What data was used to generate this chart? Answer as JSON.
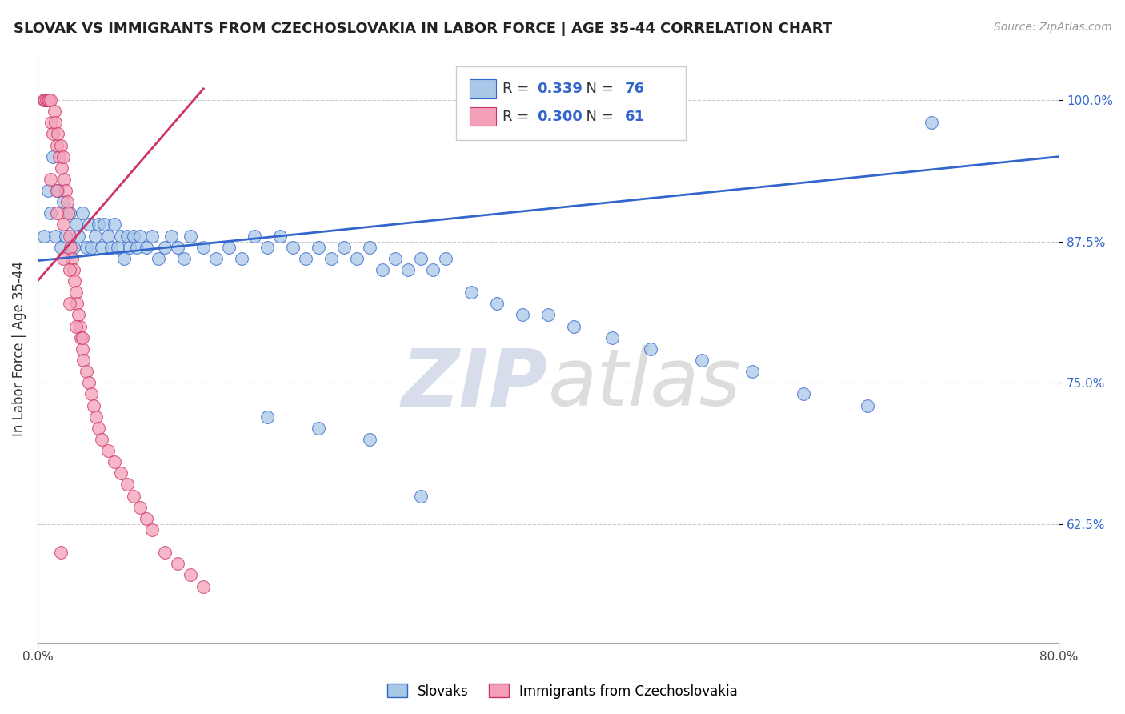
{
  "title": "SLOVAK VS IMMIGRANTS FROM CZECHOSLOVAKIA IN LABOR FORCE | AGE 35-44 CORRELATION CHART",
  "source": "Source: ZipAtlas.com",
  "ylabel": "In Labor Force | Age 35-44",
  "legend_label1": "Slovaks",
  "legend_label2": "Immigrants from Czechoslovakia",
  "R1": 0.339,
  "N1": 76,
  "R2": 0.3,
  "N2": 61,
  "color_blue": "#a8c8e8",
  "color_pink": "#f4a0b8",
  "color_blue_line": "#3366cc",
  "color_pink_line": "#cc3366",
  "xlim": [
    0.0,
    0.8
  ],
  "ylim": [
    0.52,
    1.04
  ],
  "ytick_positions": [
    0.625,
    0.75,
    0.875,
    1.0
  ],
  "ytick_labels": [
    "62.5%",
    "75.0%",
    "87.5%",
    "100.0%"
  ],
  "watermark_zip": "ZIP",
  "watermark_atlas": "atlas",
  "blue_x": [
    0.005,
    0.008,
    0.01,
    0.012,
    0.014,
    0.016,
    0.018,
    0.02,
    0.022,
    0.025,
    0.028,
    0.03,
    0.032,
    0.035,
    0.038,
    0.04,
    0.042,
    0.045,
    0.048,
    0.05,
    0.052,
    0.055,
    0.058,
    0.06,
    0.063,
    0.065,
    0.068,
    0.07,
    0.072,
    0.075,
    0.078,
    0.08,
    0.085,
    0.09,
    0.095,
    0.1,
    0.105,
    0.11,
    0.115,
    0.12,
    0.13,
    0.14,
    0.15,
    0.16,
    0.17,
    0.18,
    0.19,
    0.2,
    0.21,
    0.22,
    0.23,
    0.24,
    0.25,
    0.26,
    0.27,
    0.28,
    0.29,
    0.3,
    0.31,
    0.32,
    0.34,
    0.36,
    0.38,
    0.4,
    0.42,
    0.45,
    0.48,
    0.52,
    0.56,
    0.6,
    0.65,
    0.7,
    0.18,
    0.22,
    0.26,
    0.3
  ],
  "blue_y": [
    0.88,
    0.92,
    0.9,
    0.95,
    0.88,
    0.92,
    0.87,
    0.91,
    0.88,
    0.9,
    0.87,
    0.89,
    0.88,
    0.9,
    0.87,
    0.89,
    0.87,
    0.88,
    0.89,
    0.87,
    0.89,
    0.88,
    0.87,
    0.89,
    0.87,
    0.88,
    0.86,
    0.88,
    0.87,
    0.88,
    0.87,
    0.88,
    0.87,
    0.88,
    0.86,
    0.87,
    0.88,
    0.87,
    0.86,
    0.88,
    0.87,
    0.86,
    0.87,
    0.86,
    0.88,
    0.87,
    0.88,
    0.87,
    0.86,
    0.87,
    0.86,
    0.87,
    0.86,
    0.87,
    0.85,
    0.86,
    0.85,
    0.86,
    0.85,
    0.86,
    0.83,
    0.82,
    0.81,
    0.81,
    0.8,
    0.79,
    0.78,
    0.77,
    0.76,
    0.74,
    0.73,
    0.98,
    0.72,
    0.71,
    0.7,
    0.65
  ],
  "pink_x": [
    0.005,
    0.006,
    0.007,
    0.008,
    0.009,
    0.01,
    0.011,
    0.012,
    0.013,
    0.014,
    0.015,
    0.016,
    0.017,
    0.018,
    0.019,
    0.02,
    0.021,
    0.022,
    0.023,
    0.024,
    0.025,
    0.026,
    0.027,
    0.028,
    0.029,
    0.03,
    0.031,
    0.032,
    0.033,
    0.034,
    0.035,
    0.036,
    0.038,
    0.04,
    0.042,
    0.044,
    0.046,
    0.048,
    0.05,
    0.055,
    0.06,
    0.065,
    0.07,
    0.075,
    0.08,
    0.085,
    0.09,
    0.1,
    0.11,
    0.12,
    0.13,
    0.025,
    0.03,
    0.035,
    0.02,
    0.025,
    0.015,
    0.02,
    0.01,
    0.015,
    0.018
  ],
  "pink_y": [
    1.0,
    1.0,
    1.0,
    1.0,
    1.0,
    1.0,
    0.98,
    0.97,
    0.99,
    0.98,
    0.96,
    0.97,
    0.95,
    0.96,
    0.94,
    0.95,
    0.93,
    0.92,
    0.91,
    0.9,
    0.88,
    0.87,
    0.86,
    0.85,
    0.84,
    0.83,
    0.82,
    0.81,
    0.8,
    0.79,
    0.78,
    0.77,
    0.76,
    0.75,
    0.74,
    0.73,
    0.72,
    0.71,
    0.7,
    0.69,
    0.68,
    0.67,
    0.66,
    0.65,
    0.64,
    0.63,
    0.62,
    0.6,
    0.59,
    0.58,
    0.57,
    0.82,
    0.8,
    0.79,
    0.86,
    0.85,
    0.9,
    0.89,
    0.93,
    0.92,
    0.6
  ],
  "blue_line_x": [
    0.0,
    0.8
  ],
  "blue_line_y": [
    0.858,
    0.95
  ],
  "pink_line_x": [
    0.0,
    0.13
  ],
  "pink_line_y": [
    0.84,
    1.01
  ]
}
